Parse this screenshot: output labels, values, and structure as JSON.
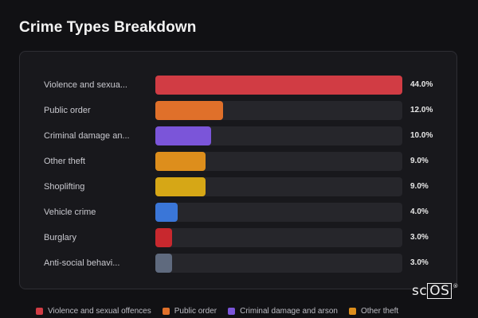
{
  "page": {
    "title": "Crime Types Breakdown"
  },
  "brand": {
    "prefix": "sc",
    "boxed": "OS",
    "reg": "®"
  },
  "chart_data": {
    "type": "bar",
    "orientation": "horizontal",
    "title": "Crime Types Breakdown",
    "categories": [
      "Violence and sexua...",
      "Public order",
      "Criminal damage an...",
      "Other theft",
      "Shoplifting",
      "Vehicle crime",
      "Burglary",
      "Anti-social behavi..."
    ],
    "values": [
      44.0,
      12.0,
      10.0,
      9.0,
      9.0,
      4.0,
      3.0,
      3.0
    ],
    "value_labels": [
      "44.0%",
      "12.0%",
      "10.0%",
      "9.0%",
      "9.0%",
      "4.0%",
      "3.0%",
      "3.0%"
    ],
    "colors": [
      "#d13c44",
      "#e0702a",
      "#7b55d9",
      "#dd8e1c",
      "#d6a716",
      "#3a76d8",
      "#c8282e",
      "#5f6a7e"
    ],
    "xlim": [
      0,
      44
    ],
    "legend": {
      "placement": "bottom",
      "entries": [
        {
          "label": "Violence and sexual offences",
          "color": "#d13c44"
        },
        {
          "label": "Public order",
          "color": "#e0702a"
        },
        {
          "label": "Criminal damage and arson",
          "color": "#7b55d9"
        },
        {
          "label": "Other theft",
          "color": "#dd8e1c"
        }
      ]
    }
  }
}
